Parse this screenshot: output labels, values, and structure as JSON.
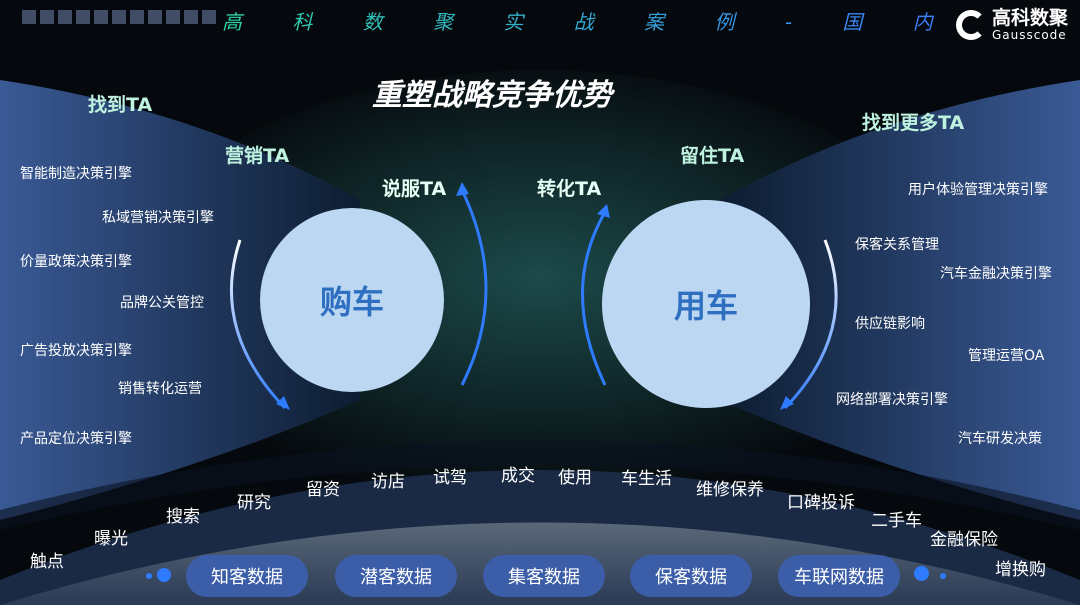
{
  "header": {
    "series_title": "高 科 数 聚 实 战 案 例 - 国 内",
    "logo_cn": "高科数聚",
    "logo_en": "Gausscode"
  },
  "title": "重塑战略竞争优势",
  "stages_ta": {
    "find": "找到TA",
    "market": "营销TA",
    "persuade": "说服TA",
    "convert": "转化TA",
    "retain": "留住TA",
    "find_more": "找到更多TA"
  },
  "circles": {
    "buy": "购车",
    "use": "用车"
  },
  "left_items": [
    "智能制造决策引擎",
    "私域营销决策引擎",
    "价量政策决策引擎",
    "品牌公关管控",
    "广告投放决策引擎",
    "销售转化运营",
    "产品定位决策引擎"
  ],
  "right_items": [
    "用户体验管理决策引擎",
    "保客关系管理",
    "汽车金融决策引擎",
    "供应链影响",
    "管理运营OA",
    "网络部署决策引擎",
    "汽车研发决策"
  ],
  "journey": [
    "触点",
    "曝光",
    "搜索",
    "研究",
    "留资",
    "访店",
    "试驾",
    "成交",
    "使用",
    "车生活",
    "维修保养",
    "口碑投诉",
    "二手车",
    "金融保险",
    "增换购"
  ],
  "data_pills": [
    "知客数据",
    "潜客数据",
    "集客数据",
    "保客数据",
    "车联网数据"
  ],
  "colors": {
    "accent_blue": "#2f7bff",
    "circle": "#bcd7f2",
    "circle_text": "#2f6fc2",
    "pill": "#3c5ea8",
    "ta_text": "#bff3e0"
  }
}
